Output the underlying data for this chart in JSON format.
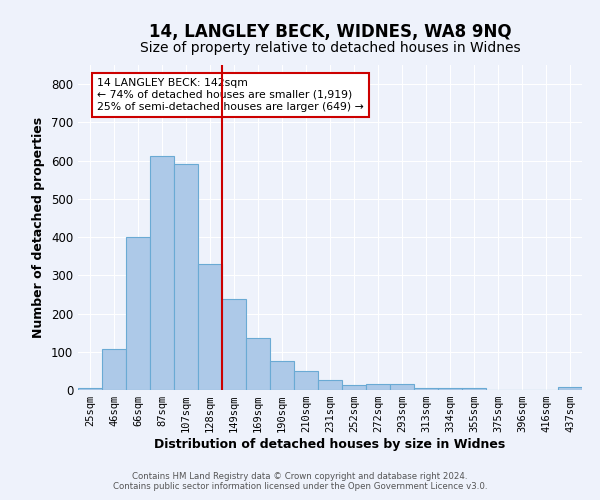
{
  "title": "14, LANGLEY BECK, WIDNES, WA8 9NQ",
  "subtitle": "Size of property relative to detached houses in Widnes",
  "xlabel": "Distribution of detached houses by size in Widnes",
  "ylabel": "Number of detached properties",
  "bar_labels": [
    "25sqm",
    "46sqm",
    "66sqm",
    "87sqm",
    "107sqm",
    "128sqm",
    "149sqm",
    "169sqm",
    "190sqm",
    "210sqm",
    "231sqm",
    "252sqm",
    "272sqm",
    "293sqm",
    "313sqm",
    "334sqm",
    "355sqm",
    "375sqm",
    "396sqm",
    "416sqm",
    "437sqm"
  ],
  "bar_heights": [
    5,
    106,
    401,
    613,
    591,
    330,
    238,
    135,
    77,
    50,
    25,
    14,
    15,
    15,
    5,
    5,
    5,
    0,
    0,
    0,
    8
  ],
  "bar_color": "#adc9e8",
  "bar_edge_color": "#6aaad4",
  "vline_color": "#cc0000",
  "annotation_text": "14 LANGLEY BECK: 142sqm\n← 74% of detached houses are smaller (1,919)\n25% of semi-detached houses are larger (649) →",
  "annotation_box_color": "#ffffff",
  "annotation_box_edge": "#cc0000",
  "ylim": [
    0,
    850
  ],
  "yticks": [
    0,
    100,
    200,
    300,
    400,
    500,
    600,
    700,
    800
  ],
  "background_color": "#eef2fb",
  "grid_color": "#ffffff",
  "footer_line1": "Contains HM Land Registry data © Crown copyright and database right 2024.",
  "footer_line2": "Contains public sector information licensed under the Open Government Licence v3.0.",
  "title_fontsize": 12,
  "subtitle_fontsize": 10
}
